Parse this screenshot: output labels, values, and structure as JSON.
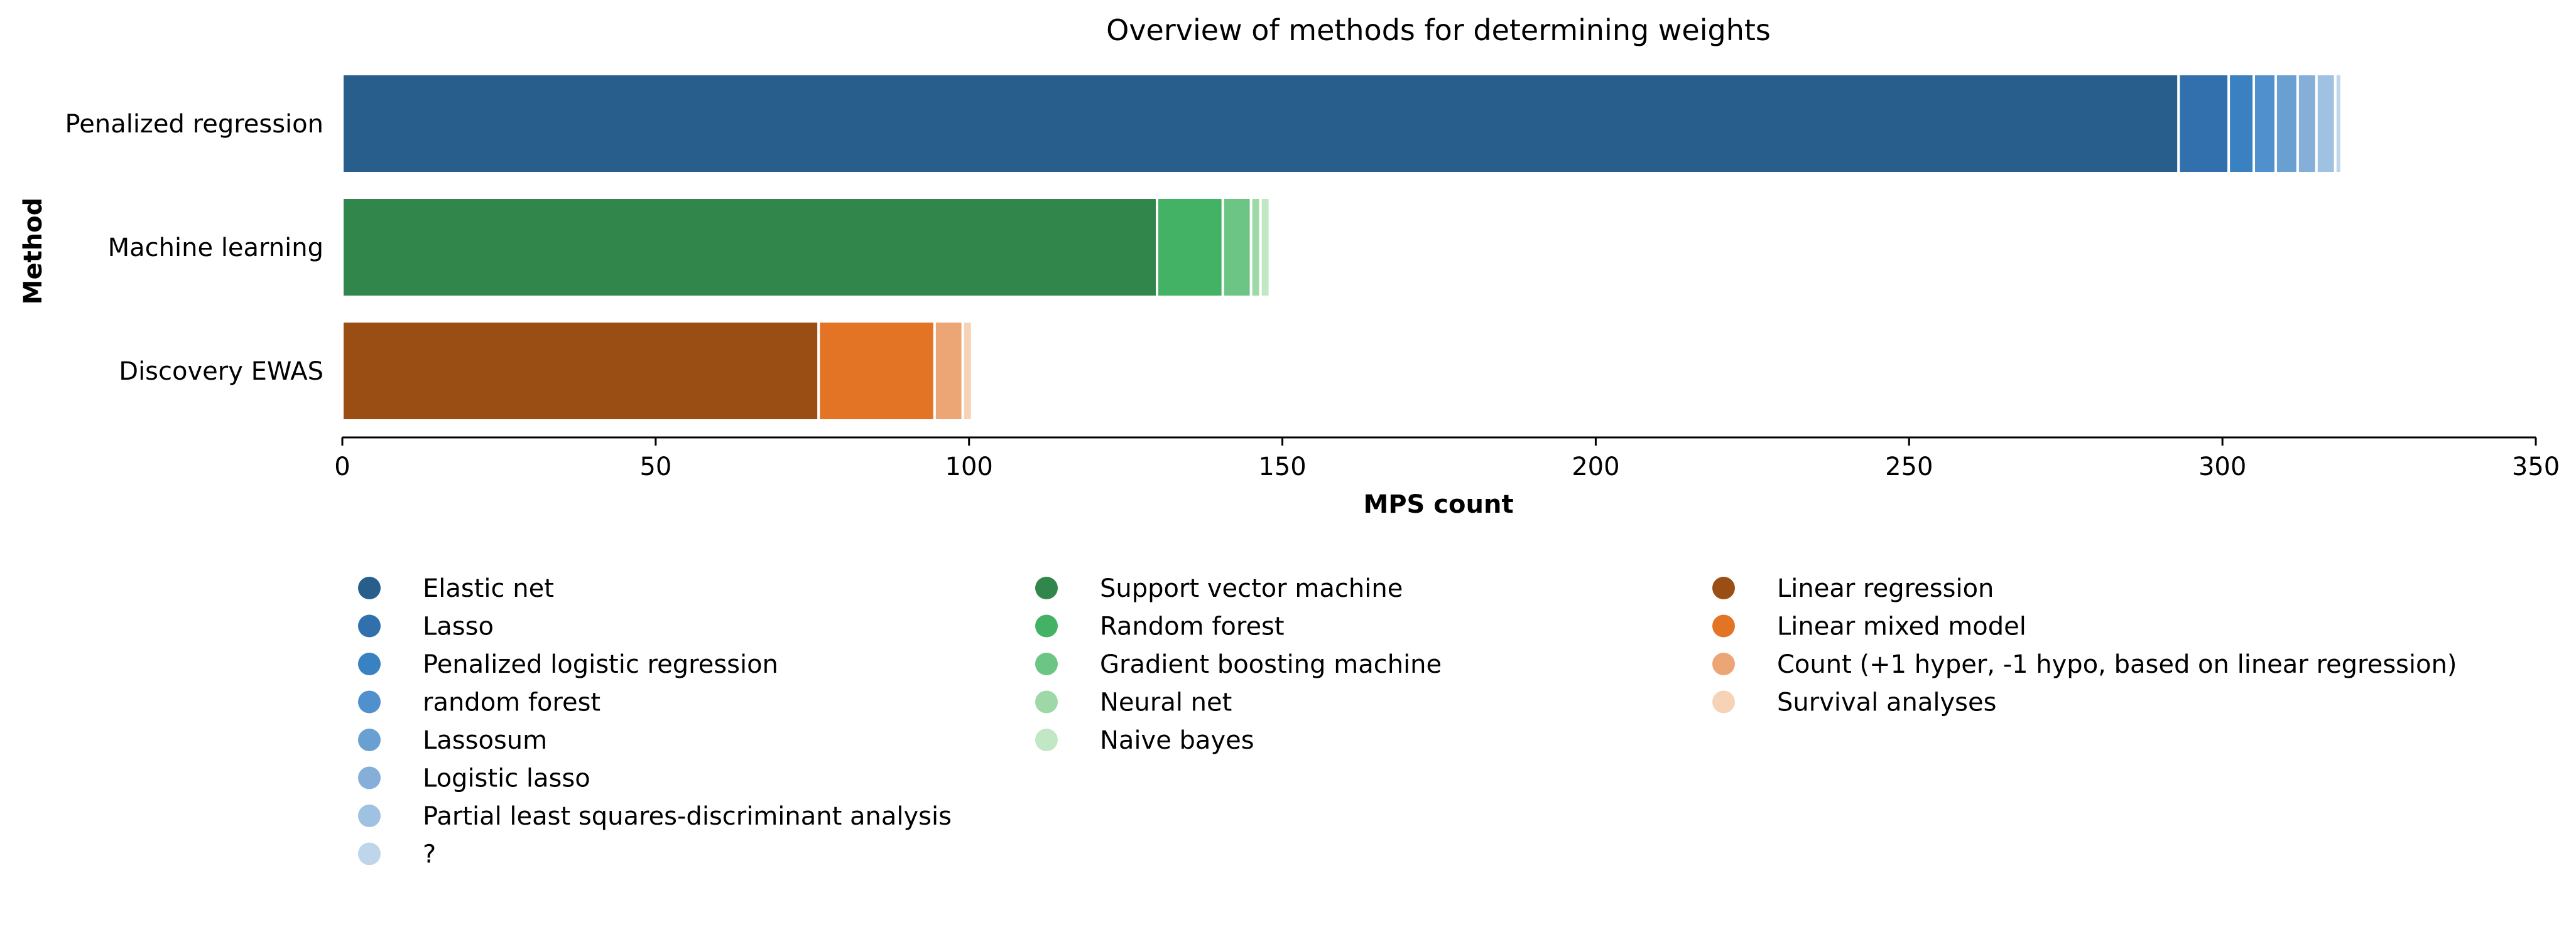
{
  "chart_data": {
    "type": "bar",
    "orientation": "horizontal",
    "stacked": true,
    "title": "Overview of methods for determining weights",
    "xlabel": "MPS count",
    "ylabel": "Method",
    "xlim": [
      0,
      350
    ],
    "xticks": [
      0,
      50,
      100,
      150,
      200,
      250,
      300,
      350
    ],
    "grid": false,
    "legend_position": "bottom",
    "categories": [
      "Penalized regression",
      "Machine learning",
      "Discovery EWAS"
    ],
    "groups": [
      {
        "category": "Penalized regression",
        "segments": [
          {
            "name": "Elastic net",
            "value": 293,
            "color": "#275e8c"
          },
          {
            "name": "Lasso",
            "value": 8,
            "color": "#3170ad"
          },
          {
            "name": "Penalized logistic regression",
            "value": 4,
            "color": "#3a81c2"
          },
          {
            "name": "random forest",
            "value": 3.5,
            "color": "#5090cc"
          },
          {
            "name": "Lassosum",
            "value": 3.5,
            "color": "#6a9fd2"
          },
          {
            "name": "Logistic lasso",
            "value": 3,
            "color": "#85afd9"
          },
          {
            "name": "Partial least squares-discriminant analysis",
            "value": 3,
            "color": "#9fc2e3"
          },
          {
            "name": "?",
            "value": 1,
            "color": "#bed5ea"
          }
        ]
      },
      {
        "category": "Machine learning",
        "segments": [
          {
            "name": "Support vector machine",
            "value": 130,
            "color": "#30864b"
          },
          {
            "name": "Random forest",
            "value": 10.5,
            "color": "#43b264"
          },
          {
            "name": "Gradient boosting machine",
            "value": 4.5,
            "color": "#6cc584"
          },
          {
            "name": "Neural net",
            "value": 1.5,
            "color": "#9ed8a6"
          },
          {
            "name": "Naive bayes",
            "value": 1.5,
            "color": "#c2e7c5"
          }
        ]
      },
      {
        "category": "Discovery EWAS",
        "segments": [
          {
            "name": "Linear regression",
            "value": 76,
            "color": "#9a4e14"
          },
          {
            "name": "Linear mixed model",
            "value": 18.5,
            "color": "#e37426"
          },
          {
            "name": "Count (+1 hyper, -1 hypo, based on linear regression)",
            "value": 4.5,
            "color": "#eca675"
          },
          {
            "name": "Survival analyses",
            "value": 1.5,
            "color": "#f6d3b6"
          }
        ]
      }
    ],
    "legend_columns": [
      [
        {
          "label": "Elastic net",
          "color": "#275e8c"
        },
        {
          "label": "Lasso",
          "color": "#3170ad"
        },
        {
          "label": "Penalized logistic regression",
          "color": "#3a81c2"
        },
        {
          "label": "random forest",
          "color": "#5090cc"
        },
        {
          "label": "Lassosum",
          "color": "#6a9fd2"
        },
        {
          "label": "Logistic lasso",
          "color": "#85afd9"
        },
        {
          "label": "Partial least squares-discriminant analysis",
          "color": "#9fc2e3"
        },
        {
          "label": "?",
          "color": "#bed5ea"
        }
      ],
      [
        {
          "label": "Support vector machine",
          "color": "#30864b"
        },
        {
          "label": "Random forest",
          "color": "#43b264"
        },
        {
          "label": "Gradient boosting machine",
          "color": "#6cc584"
        },
        {
          "label": "Neural net",
          "color": "#9ed8a6"
        },
        {
          "label": "Naive bayes",
          "color": "#c2e7c5"
        }
      ],
      [
        {
          "label": "Linear regression",
          "color": "#9a4e14"
        },
        {
          "label": "Linear mixed model",
          "color": "#e37426"
        },
        {
          "label": "Count (+1 hyper, -1 hypo, based on linear regression)",
          "color": "#eca675"
        },
        {
          "label": "Survival analyses",
          "color": "#f6d3b6"
        }
      ]
    ]
  }
}
